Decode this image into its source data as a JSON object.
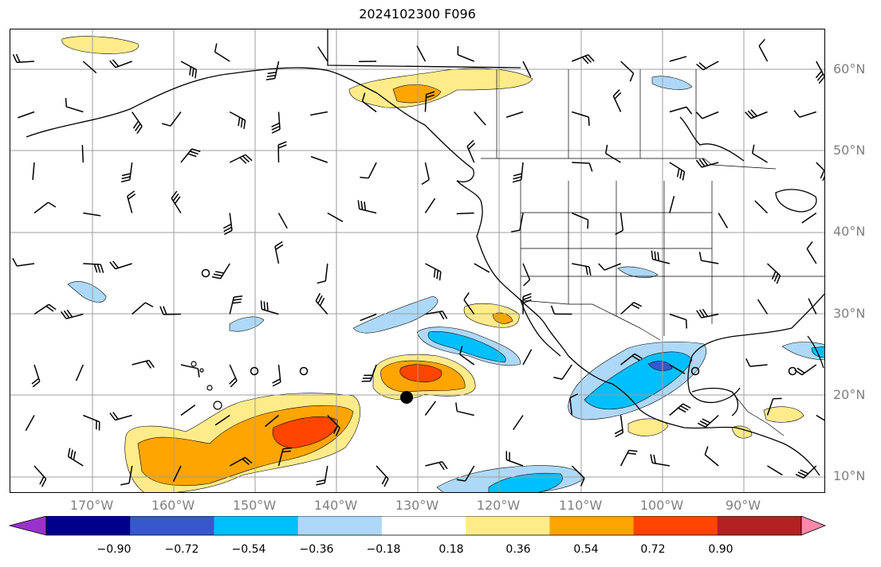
{
  "title": "2024102300 F096",
  "lat_labels": [
    "60°N",
    "50°N",
    "40°N",
    "30°N",
    "20°N",
    "10°N"
  ],
  "lon_labels": [
    "170°W",
    "160°W",
    "150°W",
    "140°W",
    "130°W",
    "120°W",
    "110°W",
    "100°W",
    "90°W"
  ],
  "colorbar": {
    "ticks": [
      "−0.90",
      "−0.72",
      "−0.54",
      "−0.36",
      "−0.18",
      "0.18",
      "0.36",
      "0.54",
      "0.72",
      "0.90"
    ],
    "colors": [
      "#9932cc",
      "#00008b",
      "#3658cc",
      "#00bfff",
      "#add8f8",
      "#ffffff",
      "#ffeb8a",
      "#ffa500",
      "#ff4500",
      "#b22222",
      "#ff88aa"
    ]
  },
  "legend_markers": []
}
